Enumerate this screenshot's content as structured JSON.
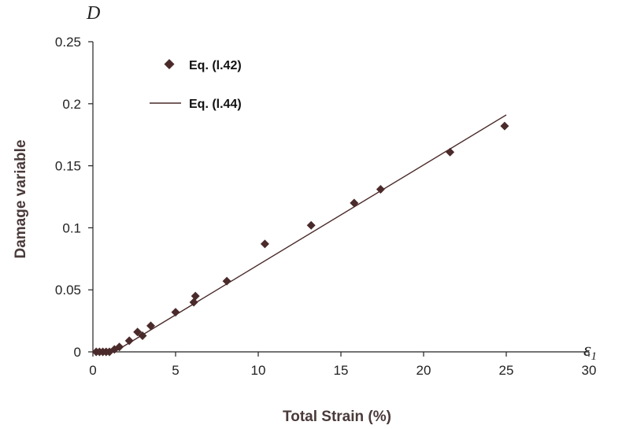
{
  "chart_data": {
    "type": "scatter",
    "xlabel": "Total Strain (%)",
    "ylabel": "Damage variable",
    "x_symbol": "ε",
    "x_symbol_sub": "1",
    "y_symbol": "D",
    "xlim": [
      0,
      30
    ],
    "ylim": [
      0,
      0.25
    ],
    "xticks": [
      "0",
      "5",
      "10",
      "15",
      "20",
      "25",
      "30"
    ],
    "yticks": [
      "0",
      "0.05",
      "0.1",
      "0.15",
      "0.2",
      "0.25"
    ],
    "legend_position": "top-left",
    "grid": false,
    "series": [
      {
        "name": "Eq. (l.42)",
        "kind": "scatter",
        "color": "#4a2a2a",
        "marker": "diamond",
        "points": [
          [
            0.2,
            0.0
          ],
          [
            0.4,
            0.0
          ],
          [
            0.6,
            0.0
          ],
          [
            0.8,
            0.0
          ],
          [
            1.0,
            0.0
          ],
          [
            1.3,
            0.002
          ],
          [
            1.6,
            0.004
          ],
          [
            2.2,
            0.009
          ],
          [
            2.7,
            0.016
          ],
          [
            3.0,
            0.013
          ],
          [
            3.5,
            0.021
          ],
          [
            5.0,
            0.032
          ],
          [
            6.1,
            0.04
          ],
          [
            6.2,
            0.045
          ],
          [
            8.1,
            0.057
          ],
          [
            10.4,
            0.087
          ],
          [
            13.2,
            0.102
          ],
          [
            15.8,
            0.12
          ],
          [
            17.4,
            0.131
          ],
          [
            21.6,
            0.161
          ],
          [
            24.9,
            0.182
          ]
        ]
      },
      {
        "name": "Eq. (l.44)",
        "kind": "line",
        "color": "#4a2a2a",
        "points": [
          [
            1.3,
            0.0
          ],
          [
            25.0,
            0.191
          ]
        ]
      }
    ]
  }
}
